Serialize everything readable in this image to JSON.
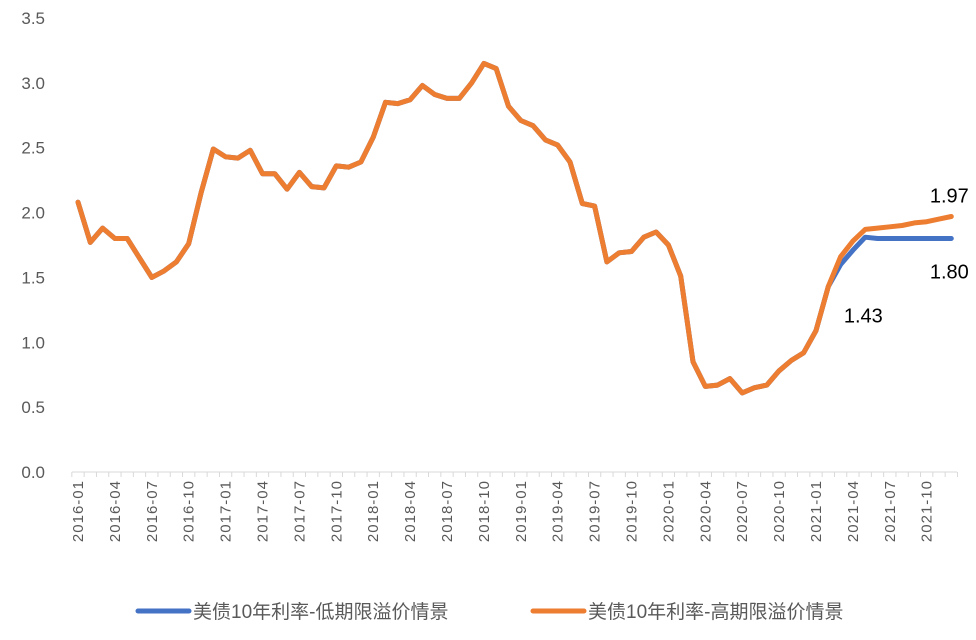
{
  "chart_data": {
    "type": "line",
    "title": "",
    "xlabel": "",
    "ylabel": "",
    "ylim": [
      0,
      3.5
    ],
    "yticks": [
      "0.0",
      "0.5",
      "1.0",
      "1.5",
      "2.0",
      "2.5",
      "3.0",
      "3.5"
    ],
    "grid": false,
    "legend_position": "bottom",
    "x": [
      "2016-01",
      "2016-02",
      "2016-03",
      "2016-04",
      "2016-05",
      "2016-06",
      "2016-07",
      "2016-08",
      "2016-09",
      "2016-10",
      "2016-11",
      "2016-12",
      "2017-01",
      "2017-02",
      "2017-03",
      "2017-04",
      "2017-05",
      "2017-06",
      "2017-07",
      "2017-08",
      "2017-09",
      "2017-10",
      "2017-11",
      "2017-12",
      "2018-01",
      "2018-02",
      "2018-03",
      "2018-04",
      "2018-05",
      "2018-06",
      "2018-07",
      "2018-08",
      "2018-09",
      "2018-10",
      "2018-11",
      "2018-12",
      "2019-01",
      "2019-02",
      "2019-03",
      "2019-04",
      "2019-05",
      "2019-06",
      "2019-07",
      "2019-08",
      "2019-09",
      "2019-10",
      "2019-11",
      "2019-12",
      "2020-01",
      "2020-02",
      "2020-03",
      "2020-04",
      "2020-05",
      "2020-06",
      "2020-07",
      "2020-08",
      "2020-09",
      "2020-10",
      "2020-11",
      "2020-12",
      "2021-01",
      "2021-02",
      "2021-03",
      "2021-04",
      "2021-05",
      "2021-06",
      "2021-07",
      "2021-08",
      "2021-09",
      "2021-10",
      "2021-11",
      "2021-12"
    ],
    "xtick_labels": [
      "2016-01",
      "2016-04",
      "2016-07",
      "2016-10",
      "2017-01",
      "2017-04",
      "2017-07",
      "2017-10",
      "2018-01",
      "2018-04",
      "2018-07",
      "2018-10",
      "2019-01",
      "2019-04",
      "2019-07",
      "2019-10",
      "2020-01",
      "2020-04",
      "2020-07",
      "2020-10",
      "2021-01",
      "2021-04",
      "2021-07",
      "2021-10"
    ],
    "series": [
      {
        "name": "美债10年利率-低期限溢价情景",
        "color": "#4472C4",
        "values": [
          2.08,
          1.77,
          1.88,
          1.8,
          1.8,
          1.65,
          1.5,
          1.55,
          1.62,
          1.76,
          2.15,
          2.49,
          2.43,
          2.42,
          2.48,
          2.3,
          2.3,
          2.18,
          2.31,
          2.2,
          2.19,
          2.36,
          2.35,
          2.39,
          2.58,
          2.85,
          2.84,
          2.87,
          2.98,
          2.91,
          2.88,
          2.88,
          3.0,
          3.15,
          3.11,
          2.82,
          2.71,
          2.67,
          2.56,
          2.52,
          2.39,
          2.07,
          2.05,
          1.62,
          1.69,
          1.7,
          1.81,
          1.85,
          1.75,
          1.51,
          0.85,
          0.66,
          0.67,
          0.72,
          0.61,
          0.65,
          0.67,
          0.78,
          0.86,
          0.92,
          1.09,
          1.43,
          1.6,
          1.71,
          1.81,
          1.8,
          1.8,
          1.8,
          1.8,
          1.8,
          1.8,
          1.8
        ]
      },
      {
        "name": "美债10年利率-高期限溢价情景",
        "color": "#ED7D31",
        "values": [
          2.08,
          1.77,
          1.88,
          1.8,
          1.8,
          1.65,
          1.5,
          1.55,
          1.62,
          1.76,
          2.15,
          2.49,
          2.43,
          2.42,
          2.48,
          2.3,
          2.3,
          2.18,
          2.31,
          2.2,
          2.19,
          2.36,
          2.35,
          2.39,
          2.58,
          2.85,
          2.84,
          2.87,
          2.98,
          2.91,
          2.88,
          2.88,
          3.0,
          3.15,
          3.11,
          2.82,
          2.71,
          2.67,
          2.56,
          2.52,
          2.39,
          2.07,
          2.05,
          1.62,
          1.69,
          1.7,
          1.81,
          1.85,
          1.75,
          1.51,
          0.85,
          0.66,
          0.67,
          0.72,
          0.61,
          0.65,
          0.67,
          0.78,
          0.86,
          0.92,
          1.09,
          1.43,
          1.66,
          1.78,
          1.87,
          1.88,
          1.89,
          1.9,
          1.92,
          1.93,
          1.95,
          1.97
        ]
      }
    ],
    "annotations": [
      {
        "text": "1.43",
        "x": "2021-02",
        "value": 1.43
      },
      {
        "text": "1.97",
        "x": "2021-12",
        "value": 1.97
      },
      {
        "text": "1.80",
        "x": "2021-12",
        "value": 1.8
      }
    ]
  }
}
